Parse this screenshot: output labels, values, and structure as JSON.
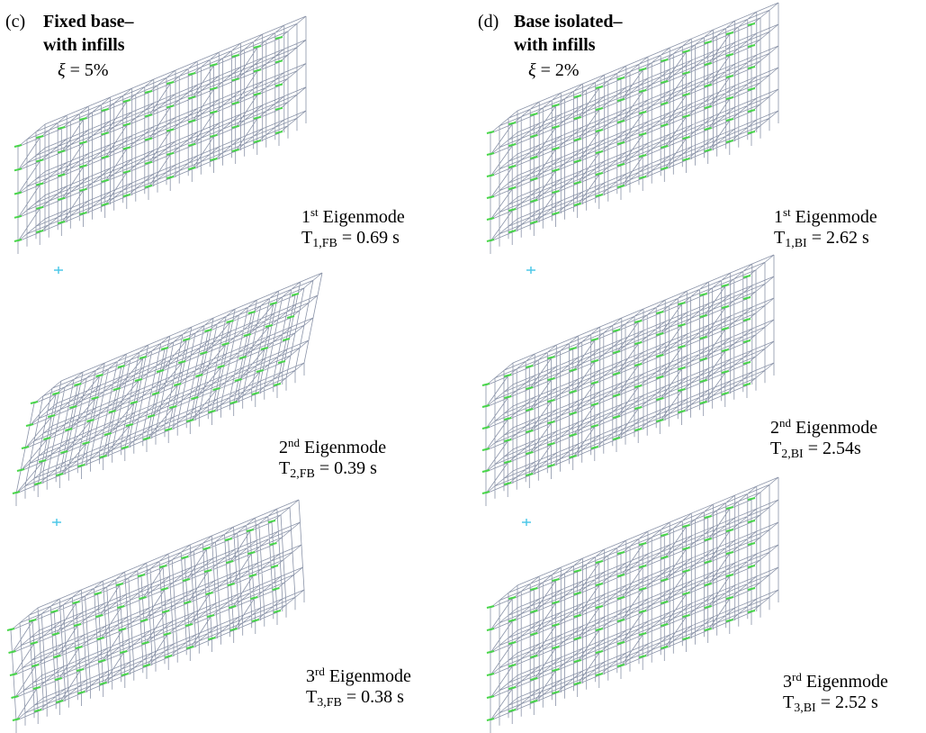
{
  "panels": [
    {
      "label": "(c)",
      "title_lines": [
        "Fixed base–",
        "with infills"
      ],
      "damping_symbol": "ξ",
      "damping_value": "= 5%",
      "modes": [
        {
          "ordinal": "1",
          "ordinal_suffix": "st",
          "name": "Eigenmode",
          "period_symbol": "T",
          "period_subscript": "1,FB",
          "period_value": "= 0.69 s"
        },
        {
          "ordinal": "2",
          "ordinal_suffix": "nd",
          "name": "Eigenmode",
          "period_symbol": "T",
          "period_subscript": "2,FB",
          "period_value": "= 0.39 s"
        },
        {
          "ordinal": "3",
          "ordinal_suffix": "rd",
          "name": "Eigenmode",
          "period_symbol": "T",
          "period_subscript": "3,FB",
          "period_value": "= 0.38 s"
        }
      ]
    },
    {
      "label": "(d)",
      "title_lines": [
        "Base isolated–",
        "with infills"
      ],
      "damping_symbol": "ξ",
      "damping_value": "= 2%",
      "modes": [
        {
          "ordinal": "1",
          "ordinal_suffix": "st",
          "name": "Eigenmode",
          "period_symbol": "T",
          "period_subscript": "1,BI",
          "period_value": "= 2.62 s"
        },
        {
          "ordinal": "2",
          "ordinal_suffix": "nd",
          "name": "Eigenmode",
          "period_symbol": "T",
          "period_subscript": "2,BI",
          "period_value": "= 2.54s"
        },
        {
          "ordinal": "3",
          "ordinal_suffix": "rd",
          "name": "Eigenmode",
          "period_symbol": "T",
          "period_subscript": "3,BI",
          "period_value": "= 2.52 s"
        }
      ]
    }
  ]
}
